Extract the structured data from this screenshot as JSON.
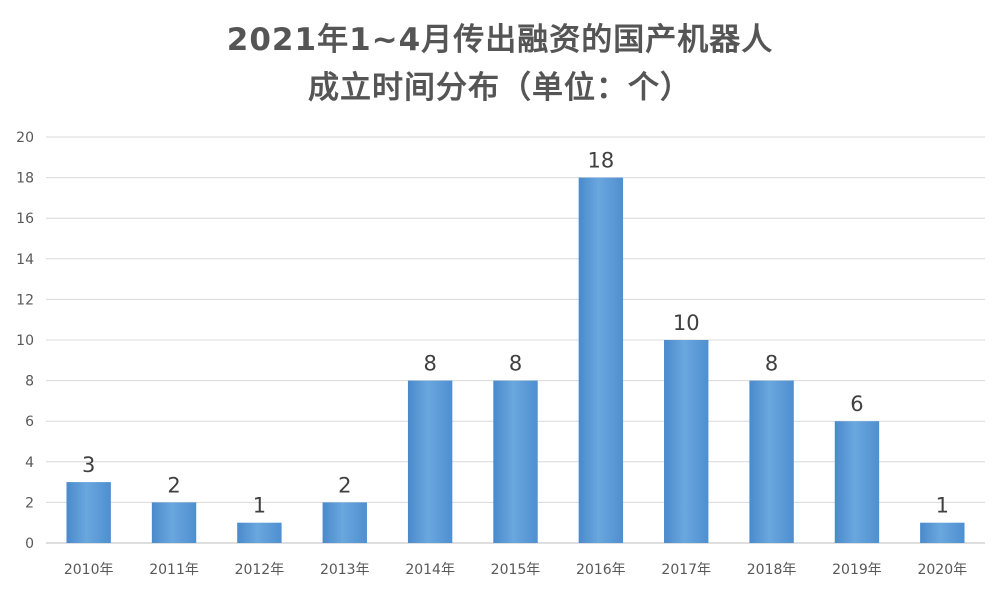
{
  "chart_data": {
    "type": "bar",
    "title": [
      "2021年1~4月传出融资的国产机器人",
      "成立时间分布（单位：个）"
    ],
    "xlabel": "",
    "ylabel": "",
    "categories": [
      "2010年",
      "2011年",
      "2012年",
      "2013年",
      "2014年",
      "2015年",
      "2016年",
      "2017年",
      "2018年",
      "2019年",
      "2020年"
    ],
    "values": [
      3,
      2,
      1,
      2,
      8,
      8,
      18,
      10,
      8,
      6,
      1
    ],
    "ylim": [
      0,
      20
    ],
    "yticks": [
      0,
      2,
      4,
      6,
      8,
      10,
      12,
      14,
      16,
      18,
      20
    ],
    "grid": true,
    "data_labels": true,
    "bar_color": "#5b9bd5",
    "bar_color_light": "#7fb2e3"
  }
}
